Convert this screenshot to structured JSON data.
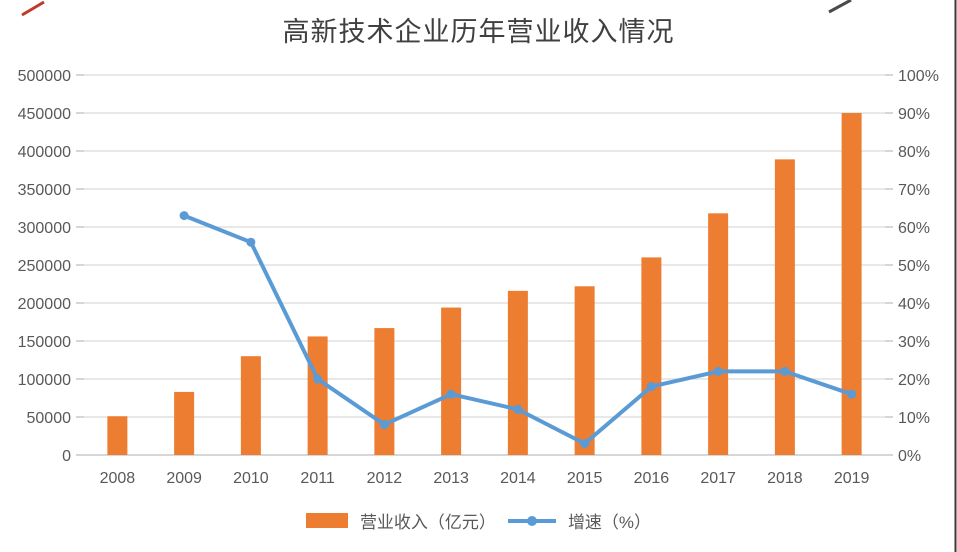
{
  "title": "高新技术企业历年营业收入情况",
  "legend": {
    "bar_label": "营业收入（亿元）",
    "line_label": "增速（%）"
  },
  "colors": {
    "bar": "#ED7D31",
    "line": "#5B9BD5",
    "grid": "#D9D9D9",
    "axis_line": "#BFBFBF",
    "tick": "#BFBFBF",
    "axis_text": "#595959",
    "title_text": "#404040",
    "artifact_red": "#C0392B",
    "artifact_dark": "#4A4A4A",
    "border_right": "#3A3A3A"
  },
  "chart_data": {
    "type": "bar+line",
    "title": "高新技术企业历年营业收入情况",
    "categories": [
      "2008",
      "2009",
      "2010",
      "2011",
      "2012",
      "2013",
      "2014",
      "2015",
      "2016",
      "2017",
      "2018",
      "2019"
    ],
    "series": [
      {
        "name": "营业收入（亿元）",
        "type": "bar",
        "axis": "left",
        "color": "#ED7D31",
        "values": [
          51000,
          83000,
          130000,
          156000,
          167000,
          194000,
          216000,
          222000,
          260000,
          318000,
          389000,
          450000
        ]
      },
      {
        "name": "增速（%）",
        "type": "line",
        "axis": "right",
        "color": "#5B9BD5",
        "values": [
          null,
          63,
          56,
          20,
          8,
          16,
          12,
          3,
          18,
          22,
          22,
          16
        ]
      }
    ],
    "left_axis": {
      "min": 0,
      "max": 500000,
      "step": 50000,
      "ticks": [
        "0",
        "50000",
        "100000",
        "150000",
        "200000",
        "250000",
        "300000",
        "350000",
        "400000",
        "450000",
        "500000"
      ]
    },
    "right_axis": {
      "min": 0,
      "max": 100,
      "step": 10,
      "ticks": [
        "0%",
        "10%",
        "20%",
        "30%",
        "40%",
        "50%",
        "60%",
        "70%",
        "80%",
        "90%",
        "100%"
      ]
    },
    "grid": true,
    "legend_position": "bottom"
  }
}
